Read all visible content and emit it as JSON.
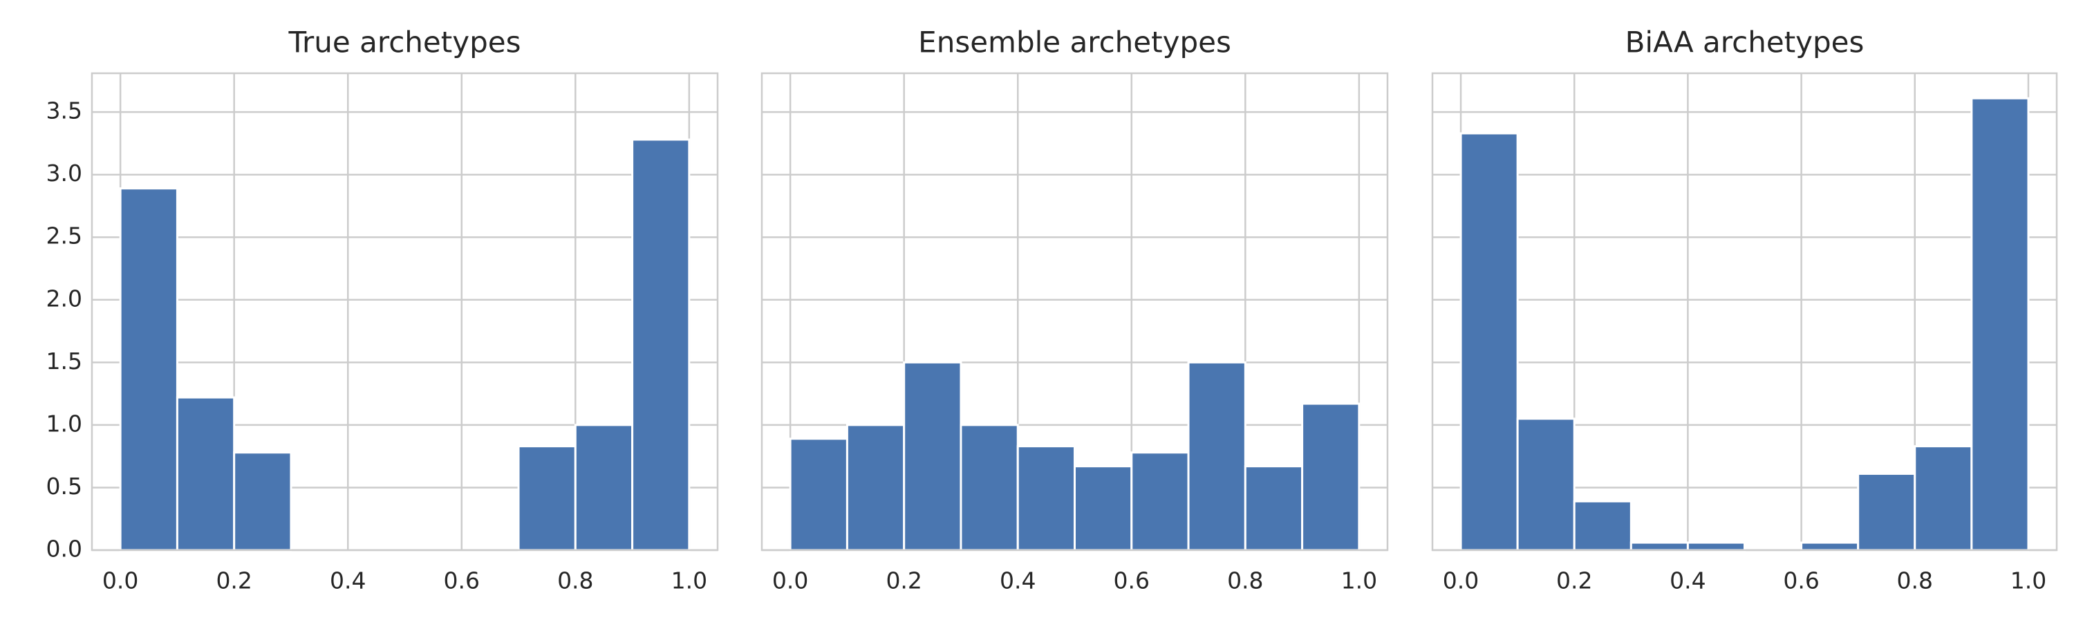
{
  "chart_data": [
    {
      "type": "histogram",
      "title": "True archetypes",
      "bins": [
        0.0,
        0.1,
        0.2,
        0.3,
        0.4,
        0.5,
        0.6,
        0.7,
        0.8,
        0.9,
        1.0
      ],
      "values": [
        2.89,
        1.22,
        0.78,
        0,
        0,
        0,
        0,
        0.83,
        1.0,
        3.28
      ],
      "color": "#4a76b0",
      "xlim": [
        -0.05,
        1.05
      ],
      "ylim": [
        0,
        3.81
      ],
      "xticks": [
        {
          "value": 0,
          "label": "0.0"
        },
        0.2,
        0.4,
        0.6,
        0.8,
        {
          "value": 1,
          "label": "1.0"
        }
      ],
      "yticks": [
        {
          "value": 0,
          "label": "0.0"
        },
        0.5,
        {
          "value": 1,
          "label": "1.0"
        },
        1.5,
        {
          "value": 2,
          "label": "2.0"
        },
        2.5,
        {
          "value": 3,
          "label": "3.0"
        },
        3.5
      ],
      "grid": true
    },
    {
      "type": "histogram",
      "title": "Ensemble archetypes",
      "bins": [
        0.0,
        0.1,
        0.2,
        0.3,
        0.4,
        0.5,
        0.6,
        0.7,
        0.8,
        0.9,
        1.0
      ],
      "values": [
        0.89,
        1.0,
        1.5,
        1.0,
        0.83,
        0.67,
        0.78,
        1.5,
        0.67,
        1.17
      ],
      "color": "#4a76b0",
      "xlim": [
        -0.05,
        1.05
      ],
      "ylim": [
        0,
        3.81
      ],
      "xticks": [
        {
          "value": 0,
          "label": "0.0"
        },
        0.2,
        0.4,
        0.6,
        0.8,
        {
          "value": 1,
          "label": "1.0"
        }
      ],
      "grid": true
    },
    {
      "type": "histogram",
      "title": "BiAA archetypes",
      "bins": [
        0.0,
        0.1,
        0.2,
        0.3,
        0.4,
        0.5,
        0.6,
        0.7,
        0.8,
        0.9,
        1.0
      ],
      "values": [
        3.33,
        1.05,
        0.39,
        0.06,
        0.06,
        0,
        0.06,
        0.61,
        0.83,
        3.61
      ],
      "color": "#4a76b0",
      "xlim": [
        -0.05,
        1.05
      ],
      "ylim": [
        0,
        3.81
      ],
      "xticks": [
        {
          "value": 0,
          "label": "0.0"
        },
        0.2,
        0.4,
        0.6,
        0.8,
        {
          "value": 1,
          "label": "1.0"
        }
      ],
      "grid": true
    }
  ]
}
